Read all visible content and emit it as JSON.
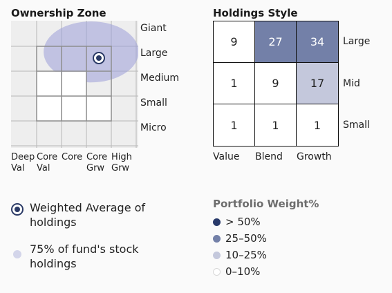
{
  "ownership_zone": {
    "title": "Ownership Zone",
    "size_labels": [
      "Giant",
      "Large",
      "Medium",
      "Small",
      "Micro"
    ],
    "style_labels": [
      {
        "line1": "Deep",
        "line2": "Val"
      },
      {
        "line1": "Core",
        "line2": "Val"
      },
      {
        "line1": "Core",
        "line2": ""
      },
      {
        "line1": "Core",
        "line2": "Grw"
      },
      {
        "line1": "High",
        "line2": "Grw"
      }
    ]
  },
  "holdings_style": {
    "title": "Holdings Style",
    "col_labels": [
      "Value",
      "Blend",
      "Growth"
    ],
    "row_labels": [
      "Large",
      "Mid",
      "Small"
    ]
  },
  "legend": {
    "weighted_average": "Weighted Average of holdings",
    "zone_75": "75% of fund's stock holdings"
  },
  "portfolio_weight": {
    "title": "Portfolio Weight%",
    "items": [
      {
        "label": "> 50%",
        "color": "#283a6a"
      },
      {
        "label": "25–50%",
        "color": "#7380a8"
      },
      {
        "label": "10–25%",
        "color": "#c4c8dc"
      },
      {
        "label": "0–10%",
        "color": "#ffffff"
      }
    ]
  },
  "colors": {
    "zone_fill": "#9c9ed8",
    "grid_line": "#b7b7b7",
    "box_line": "#8e8e8e"
  },
  "chart_data": [
    {
      "type": "scatter",
      "title": "Ownership Zone",
      "x_categories": [
        "Deep Val",
        "Core Val",
        "Core",
        "Core Grw",
        "High Grw"
      ],
      "y_categories": [
        "Giant",
        "Large",
        "Medium",
        "Small",
        "Micro"
      ],
      "points": [
        {
          "series": "Weighted Average of holdings",
          "x": "Core Grw",
          "y": "Large"
        }
      ],
      "zone": {
        "series": "75% of fund's stock holdings",
        "x_range": [
          "Core Val",
          "High Grw"
        ],
        "y_range": [
          "Giant",
          "Medium"
        ]
      }
    },
    {
      "type": "heatmap",
      "title": "Holdings Style",
      "columns": [
        "Value",
        "Blend",
        "Growth"
      ],
      "rows": [
        "Large",
        "Mid",
        "Small"
      ],
      "values": [
        [
          9,
          27,
          34
        ],
        [
          1,
          9,
          17
        ],
        [
          1,
          1,
          1
        ]
      ]
    }
  ]
}
